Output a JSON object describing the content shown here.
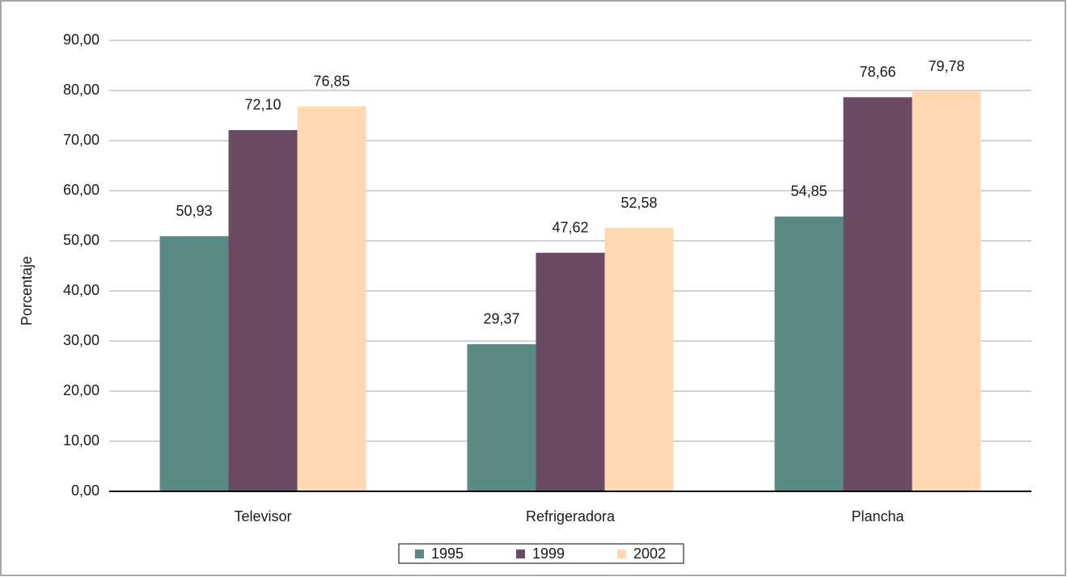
{
  "chart_data": {
    "type": "bar",
    "y_label": "Porcentaje",
    "categories": [
      "Televisor",
      "Refrigeradora",
      "Plancha"
    ],
    "series": [
      {
        "name": "1995",
        "color": "#5a8a84",
        "values": [
          50.93,
          29.37,
          54.85
        ],
        "value_labels": [
          "50,93",
          "29,37",
          "54,85"
        ]
      },
      {
        "name": "1999",
        "color": "#6a4b63",
        "values": [
          72.1,
          47.62,
          78.66
        ],
        "value_labels": [
          "72,10",
          "47,62",
          "78,66"
        ]
      },
      {
        "name": "2002",
        "color": "#ffd7b0",
        "values": [
          76.85,
          52.58,
          79.78
        ],
        "value_labels": [
          "76,85",
          "52,58",
          "79,78"
        ]
      }
    ],
    "ylim": [
      0,
      90
    ],
    "yticks": [
      {
        "value": 0,
        "label": "0,00"
      },
      {
        "value": 10,
        "label": "10,00"
      },
      {
        "value": 20,
        "label": "20,00"
      },
      {
        "value": 30,
        "label": "30,00"
      },
      {
        "value": 40,
        "label": "40,00"
      },
      {
        "value": 50,
        "label": "50,00"
      },
      {
        "value": 60,
        "label": "60,00"
      },
      {
        "value": 70,
        "label": "70,00"
      },
      {
        "value": 80,
        "label": "80,00"
      },
      {
        "value": 90,
        "label": "90,00"
      }
    ],
    "grid": true,
    "legend": "bottom"
  }
}
